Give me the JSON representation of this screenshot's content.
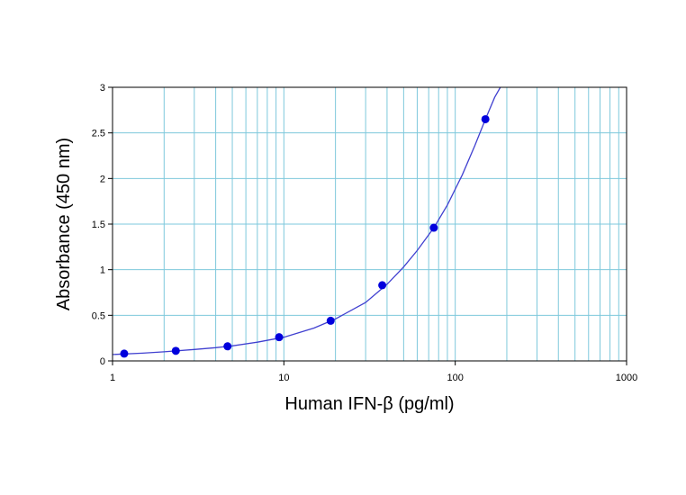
{
  "chart_data": {
    "type": "scatter",
    "xlabel": "Human IFN-β (pg/ml)",
    "ylabel": "Absorbance (450 nm)",
    "xscale": "log",
    "xlim": [
      1,
      1000
    ],
    "ylim": [
      0,
      3
    ],
    "x_ticks": [
      1,
      10,
      100,
      1000
    ],
    "x_tick_labels": [
      "1",
      "10",
      "100",
      "1000"
    ],
    "y_ticks": [
      0,
      0.5,
      1,
      1.5,
      2,
      2.5,
      3
    ],
    "y_tick_labels": [
      "0",
      "0.5",
      "1",
      "1.5",
      "2",
      "2.5",
      "3"
    ],
    "grid": true,
    "colors": {
      "grid": "#7ec8dc",
      "curve": "#4040d0",
      "points": "#0000dd",
      "axis": "#000000"
    },
    "series": [
      {
        "kind": "points",
        "x": [
          1.17,
          2.34,
          4.69,
          9.38,
          18.75,
          37.5,
          75,
          150
        ],
        "y": [
          0.08,
          0.11,
          0.16,
          0.26,
          0.44,
          0.83,
          1.46,
          2.65
        ]
      },
      {
        "kind": "fit-curve",
        "x": [
          1.0,
          1.5,
          2.0,
          3.0,
          4.0,
          5.0,
          7.0,
          10.0,
          15.0,
          20.0,
          30.0,
          40.0,
          50.0,
          60.0,
          75.0,
          90.0,
          110.0,
          130.0,
          150.0,
          170.0,
          190.0
        ],
        "y": [
          0.07,
          0.085,
          0.1,
          0.125,
          0.145,
          0.165,
          0.205,
          0.26,
          0.36,
          0.46,
          0.64,
          0.84,
          1.03,
          1.21,
          1.46,
          1.71,
          2.04,
          2.36,
          2.65,
          2.89,
          3.05
        ]
      }
    ]
  }
}
